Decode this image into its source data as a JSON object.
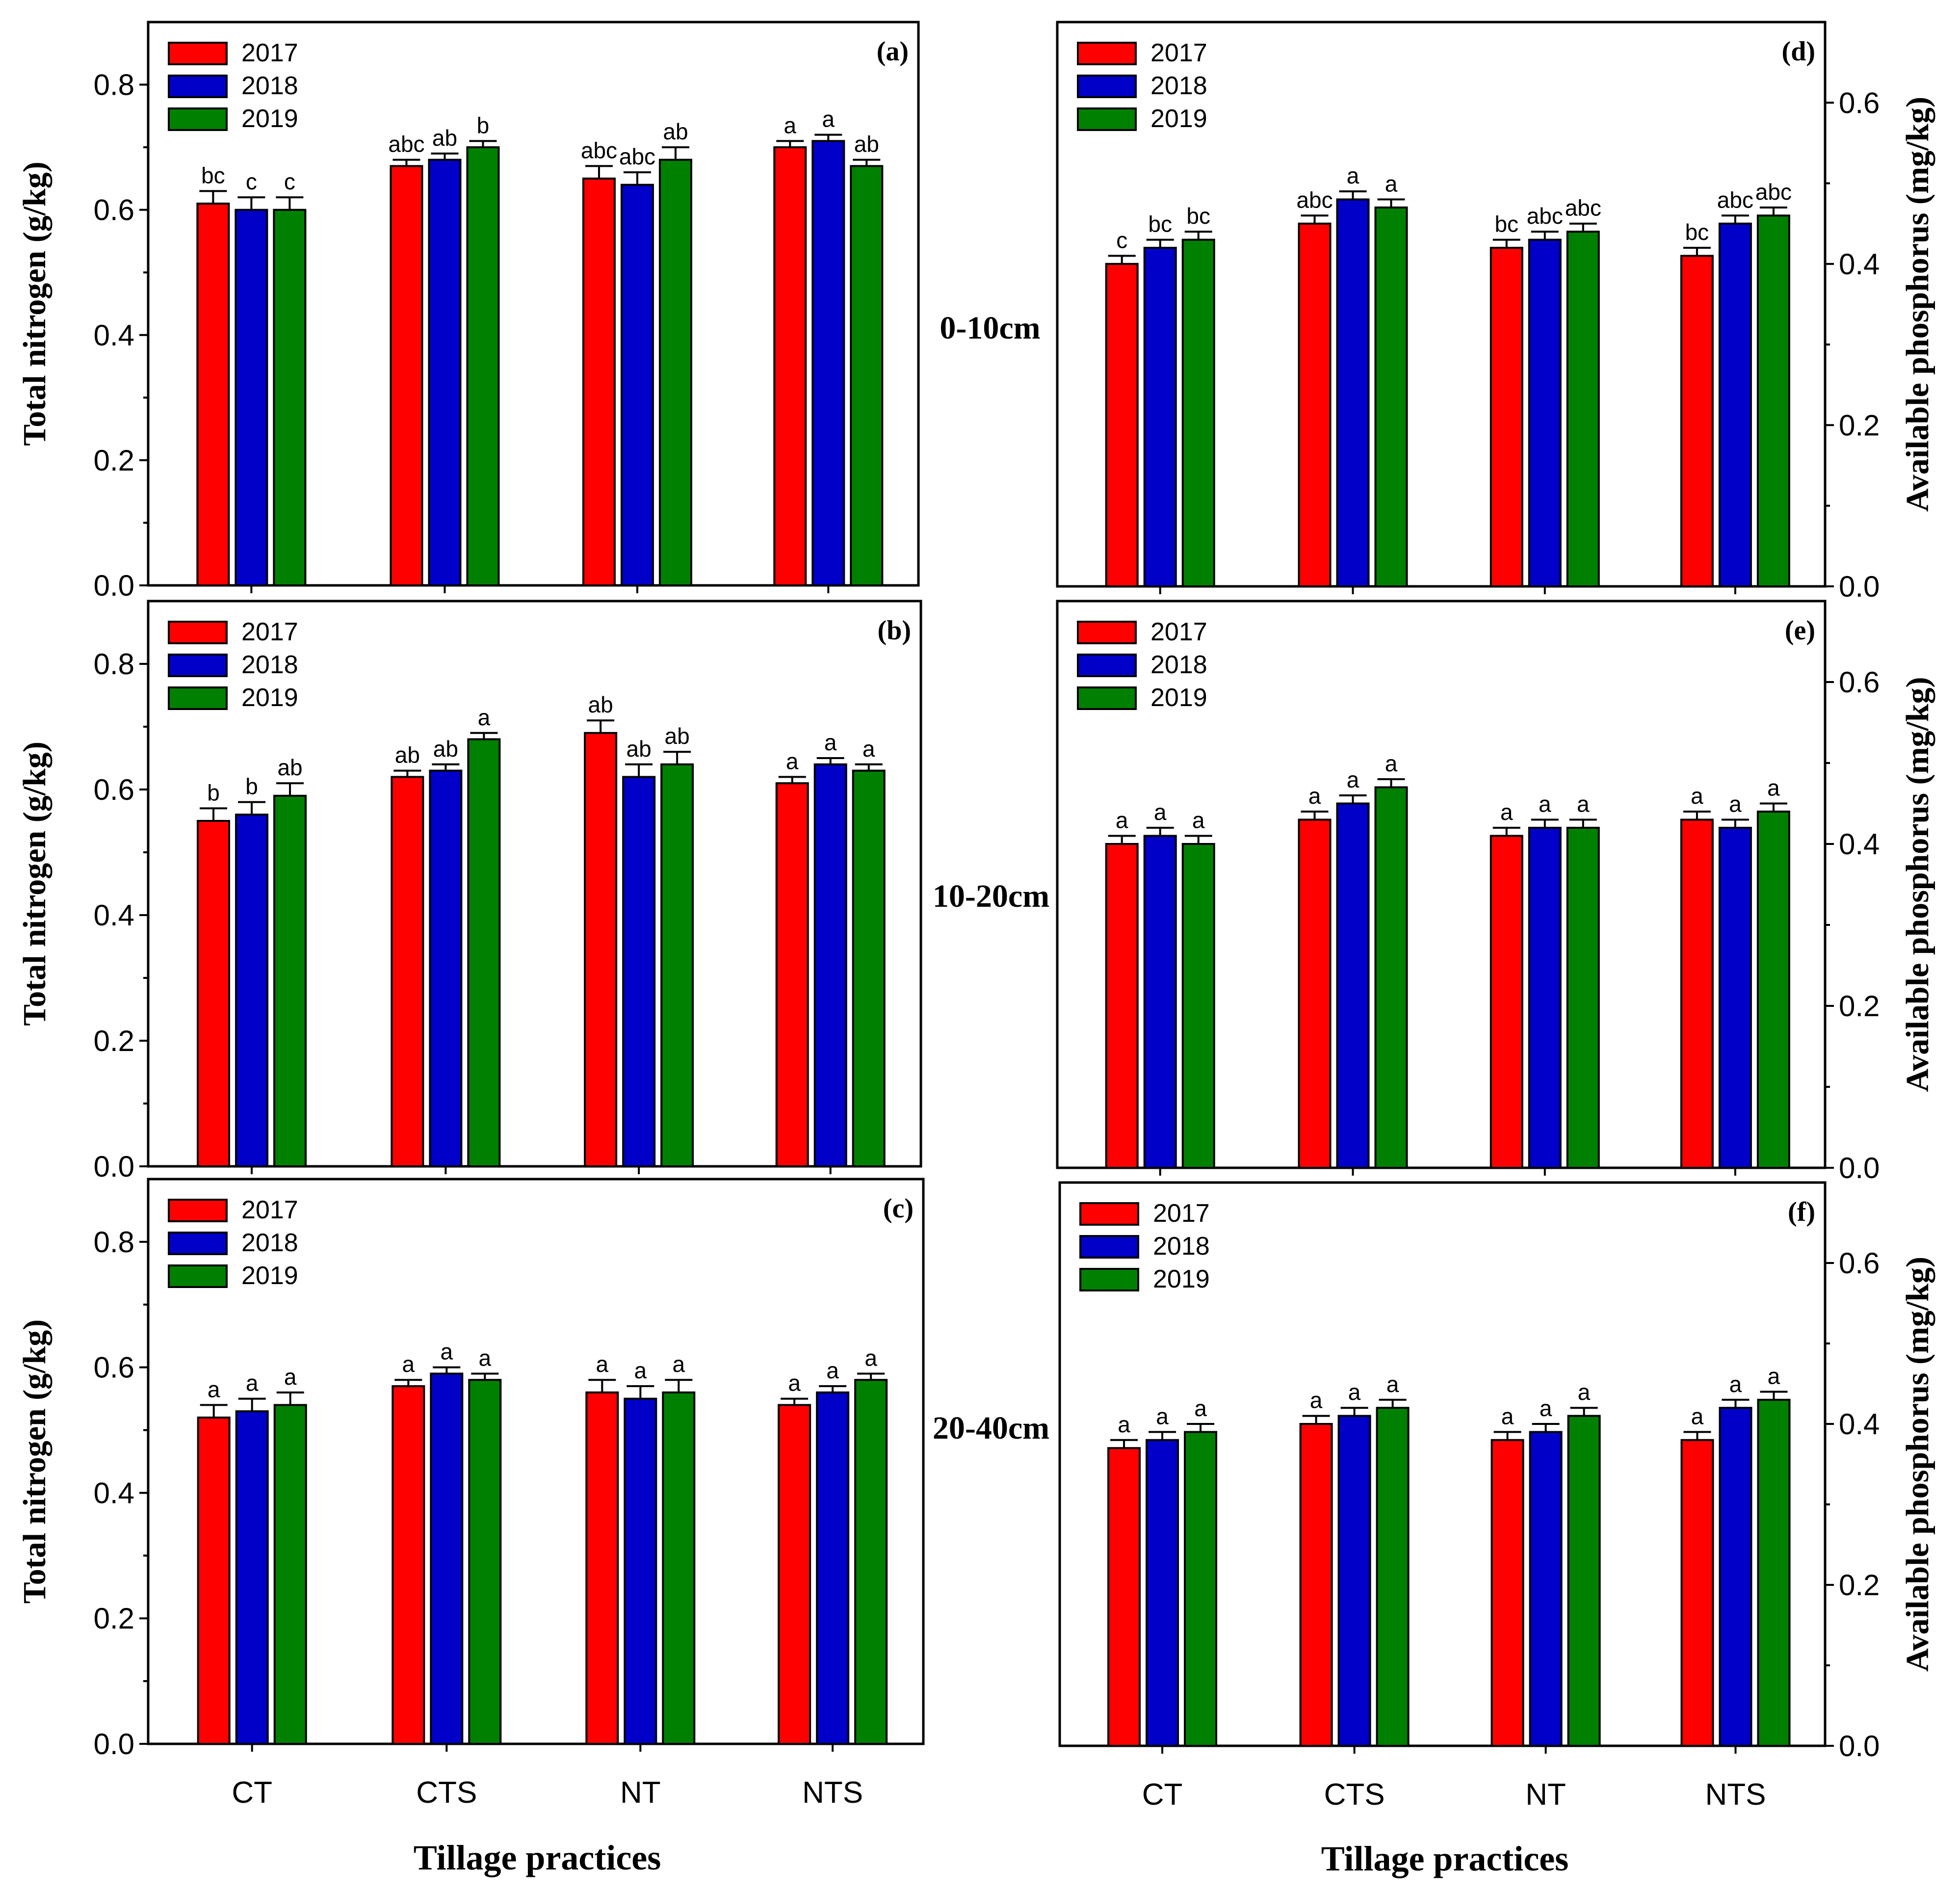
{
  "colors": {
    "2017": "#ff0000",
    "2018": "#0000c8",
    "2019": "#008000"
  },
  "depth_labels": [
    "0-10cm",
    "10-20cm",
    "20-40cm"
  ],
  "x_title": "Tillage practices",
  "chart_data": [
    {
      "type": "bar",
      "panel": "(a)",
      "side": "left",
      "ylabel": "Total nitrogen (g/kg)",
      "ylim": [
        0,
        0.9
      ],
      "yticks": [
        0.0,
        0.2,
        0.4,
        0.6,
        0.8
      ],
      "categories": [
        "CT",
        "CTS",
        "NT",
        "NTS"
      ],
      "show_category_labels": false,
      "legend": [
        "2017",
        "2018",
        "2019"
      ],
      "series": [
        {
          "name": "2017",
          "values": [
            0.61,
            0.67,
            0.65,
            0.7
          ],
          "errors": [
            0.02,
            0.01,
            0.02,
            0.01
          ],
          "letters": [
            "bc",
            "abc",
            "abc",
            "a"
          ]
        },
        {
          "name": "2018",
          "values": [
            0.6,
            0.68,
            0.64,
            0.71
          ],
          "errors": [
            0.02,
            0.01,
            0.02,
            0.01
          ],
          "letters": [
            "c",
            "ab",
            "abc",
            "a"
          ]
        },
        {
          "name": "2019",
          "values": [
            0.6,
            0.7,
            0.68,
            0.67
          ],
          "errors": [
            0.02,
            0.01,
            0.02,
            0.01
          ],
          "letters": [
            "c",
            "b",
            "ab",
            "ab"
          ]
        }
      ]
    },
    {
      "type": "bar",
      "panel": "(b)",
      "side": "left",
      "ylabel": "Total nitrogen (g/kg)",
      "ylim": [
        0,
        0.9
      ],
      "yticks": [
        0.0,
        0.2,
        0.4,
        0.6,
        0.8
      ],
      "categories": [
        "CT",
        "CTS",
        "NT",
        "NTS"
      ],
      "show_category_labels": false,
      "legend": [
        "2017",
        "2018",
        "2019"
      ],
      "series": [
        {
          "name": "2017",
          "values": [
            0.55,
            0.62,
            0.69,
            0.61
          ],
          "errors": [
            0.02,
            0.01,
            0.02,
            0.01
          ],
          "letters": [
            "b",
            "ab",
            "ab",
            "a"
          ]
        },
        {
          "name": "2018",
          "values": [
            0.56,
            0.63,
            0.62,
            0.64
          ],
          "errors": [
            0.02,
            0.01,
            0.02,
            0.01
          ],
          "letters": [
            "b",
            "ab",
            "ab",
            "a"
          ]
        },
        {
          "name": "2019",
          "values": [
            0.59,
            0.68,
            0.64,
            0.63
          ],
          "errors": [
            0.02,
            0.01,
            0.02,
            0.01
          ],
          "letters": [
            "ab",
            "a",
            "ab",
            "a"
          ]
        }
      ]
    },
    {
      "type": "bar",
      "panel": "(c)",
      "side": "left",
      "ylabel": "Total nitrogen (g/kg)",
      "ylim": [
        0,
        0.9
      ],
      "yticks": [
        0.0,
        0.2,
        0.4,
        0.6,
        0.8
      ],
      "categories": [
        "CT",
        "CTS",
        "NT",
        "NTS"
      ],
      "show_category_labels": true,
      "legend": [
        "2017",
        "2018",
        "2019"
      ],
      "series": [
        {
          "name": "2017",
          "values": [
            0.52,
            0.57,
            0.56,
            0.54
          ],
          "errors": [
            0.02,
            0.01,
            0.02,
            0.01
          ],
          "letters": [
            "a",
            "a",
            "a",
            "a"
          ]
        },
        {
          "name": "2018",
          "values": [
            0.53,
            0.59,
            0.55,
            0.56
          ],
          "errors": [
            0.02,
            0.01,
            0.02,
            0.01
          ],
          "letters": [
            "a",
            "a",
            "a",
            "a"
          ]
        },
        {
          "name": "2019",
          "values": [
            0.54,
            0.58,
            0.56,
            0.58
          ],
          "errors": [
            0.02,
            0.01,
            0.02,
            0.01
          ],
          "letters": [
            "a",
            "a",
            "a",
            "a"
          ]
        }
      ]
    },
    {
      "type": "bar",
      "panel": "(d)",
      "side": "right",
      "ylabel": "Available phosphorus (mg/kg)",
      "ylim": [
        0,
        0.7
      ],
      "yticks": [
        0.0,
        0.2,
        0.4,
        0.6
      ],
      "categories": [
        "CT",
        "CTS",
        "NT",
        "NTS"
      ],
      "show_category_labels": false,
      "legend": [
        "2017",
        "2018",
        "2019"
      ],
      "series": [
        {
          "name": "2017",
          "values": [
            0.4,
            0.45,
            0.42,
            0.41
          ],
          "errors": [
            0.01,
            0.01,
            0.01,
            0.01
          ],
          "letters": [
            "c",
            "abc",
            "bc",
            "bc"
          ]
        },
        {
          "name": "2018",
          "values": [
            0.42,
            0.48,
            0.43,
            0.45
          ],
          "errors": [
            0.01,
            0.01,
            0.01,
            0.01
          ],
          "letters": [
            "bc",
            "a",
            "abc",
            "abc"
          ]
        },
        {
          "name": "2019",
          "values": [
            0.43,
            0.47,
            0.44,
            0.46
          ],
          "errors": [
            0.01,
            0.01,
            0.01,
            0.01
          ],
          "letters": [
            "bc",
            "a",
            "abc",
            "abc"
          ]
        }
      ]
    },
    {
      "type": "bar",
      "panel": "(e)",
      "side": "right",
      "ylabel": "Available phosphorus (mg/kg)",
      "ylim": [
        0,
        0.7
      ],
      "yticks": [
        0.0,
        0.2,
        0.4,
        0.6
      ],
      "categories": [
        "CT",
        "CTS",
        "NT",
        "NTS"
      ],
      "show_category_labels": false,
      "legend": [
        "2017",
        "2018",
        "2019"
      ],
      "series": [
        {
          "name": "2017",
          "values": [
            0.4,
            0.43,
            0.41,
            0.43
          ],
          "errors": [
            0.01,
            0.01,
            0.01,
            0.01
          ],
          "letters": [
            "a",
            "a",
            "a",
            "a"
          ]
        },
        {
          "name": "2018",
          "values": [
            0.41,
            0.45,
            0.42,
            0.42
          ],
          "errors": [
            0.01,
            0.01,
            0.01,
            0.01
          ],
          "letters": [
            "a",
            "a",
            "a",
            "a"
          ]
        },
        {
          "name": "2019",
          "values": [
            0.4,
            0.47,
            0.42,
            0.44
          ],
          "errors": [
            0.01,
            0.01,
            0.01,
            0.01
          ],
          "letters": [
            "a",
            "a",
            "a",
            "a"
          ]
        }
      ]
    },
    {
      "type": "bar",
      "panel": "(f)",
      "side": "right",
      "ylabel": "Available phosphorus (mg/kg)",
      "ylim": [
        0,
        0.7
      ],
      "yticks": [
        0.0,
        0.2,
        0.4,
        0.6
      ],
      "categories": [
        "CT",
        "CTS",
        "NT",
        "NTS"
      ],
      "show_category_labels": true,
      "legend": [
        "2017",
        "2018",
        "2019"
      ],
      "series": [
        {
          "name": "2017",
          "values": [
            0.37,
            0.4,
            0.38,
            0.38
          ],
          "errors": [
            0.01,
            0.01,
            0.01,
            0.01
          ],
          "letters": [
            "a",
            "a",
            "a",
            "a"
          ]
        },
        {
          "name": "2018",
          "values": [
            0.38,
            0.41,
            0.39,
            0.42
          ],
          "errors": [
            0.01,
            0.01,
            0.01,
            0.01
          ],
          "letters": [
            "a",
            "a",
            "a",
            "a"
          ]
        },
        {
          "name": "2019",
          "values": [
            0.39,
            0.42,
            0.41,
            0.43
          ],
          "errors": [
            0.01,
            0.01,
            0.01,
            0.01
          ],
          "letters": [
            "a",
            "a",
            "a",
            "a"
          ]
        }
      ]
    }
  ]
}
